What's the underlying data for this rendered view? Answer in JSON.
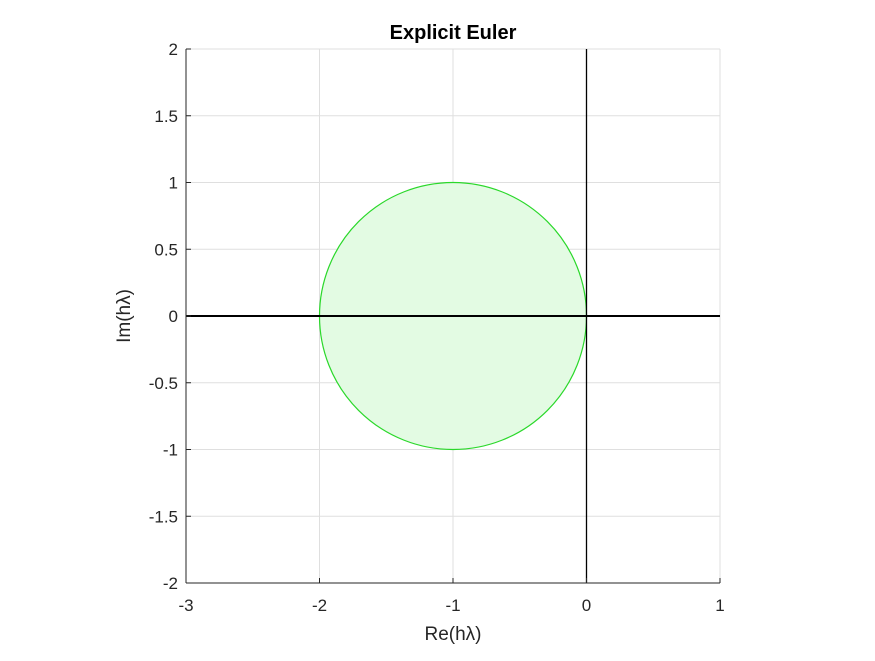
{
  "chart_data": {
    "type": "area",
    "title": "Explicit Euler",
    "xlabel": "Re(hλ)",
    "ylabel": "Im(hλ)",
    "xlim": [
      -3,
      1
    ],
    "ylim": [
      -2,
      2
    ],
    "xticks": [
      -3,
      -2,
      -1,
      0,
      1
    ],
    "xtick_labels": [
      "-3",
      "-2",
      "-1",
      "0",
      "1"
    ],
    "yticks": [
      -2,
      -1.5,
      -1,
      -0.5,
      0,
      0.5,
      1,
      1.5,
      2
    ],
    "ytick_labels": [
      "-2",
      "-1.5",
      "-1",
      "-0.5",
      "0",
      "0.5",
      "1",
      "1.5",
      "2"
    ],
    "grid": true,
    "series": [
      {
        "shape": "circle",
        "center": [
          -1,
          0
        ],
        "radius": 1,
        "fill_color": "#e3fbe3",
        "edge_color": "#2ad82a"
      }
    ],
    "reference_lines": [
      {
        "orientation": "horizontal",
        "value": 0,
        "color": "#000000"
      },
      {
        "orientation": "vertical",
        "value": 0,
        "color": "#000000"
      }
    ],
    "colors": {
      "grid": "#dfdfdf",
      "axes": "#262626"
    }
  }
}
